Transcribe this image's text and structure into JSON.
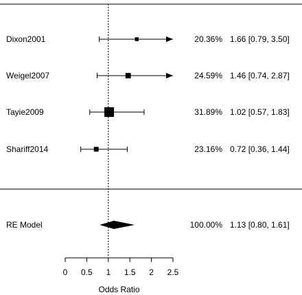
{
  "chart_data": {
    "type": "forest",
    "xlabel": "Odds Ratio",
    "xlim": [
      0,
      2.5
    ],
    "xticks": [
      0,
      0.5,
      1,
      1.5,
      2,
      2.5
    ],
    "tick_labels": [
      "0",
      "0.5",
      "1",
      "1.5",
      "2",
      "2.5"
    ],
    "reference_line": 1,
    "studies": [
      {
        "label": "Dixon2001",
        "weight": "20.36%",
        "or": 1.66,
        "lower": 0.79,
        "upper": 3.5,
        "ci_text": "1.66 [0.79, 3.50]"
      },
      {
        "label": "Weigel2007",
        "weight": "24.59%",
        "or": 1.46,
        "lower": 0.74,
        "upper": 2.87,
        "ci_text": "1.46 [0.74, 2.87]"
      },
      {
        "label": "Tayie2009",
        "weight": "31.89%",
        "or": 1.02,
        "lower": 0.57,
        "upper": 1.83,
        "ci_text": "1.02 [0.57, 1.83]"
      },
      {
        "label": "Shariff2014",
        "weight": "23.16%",
        "or": 0.72,
        "lower": 0.36,
        "upper": 1.44,
        "ci_text": "0.72 [0.36, 1.44]"
      }
    ],
    "summary": {
      "label": "RE Model",
      "weight": "100.00%",
      "or": 1.13,
      "lower": 0.8,
      "upper": 1.61,
      "ci_text": "1.13 [0.80, 1.61]"
    }
  }
}
